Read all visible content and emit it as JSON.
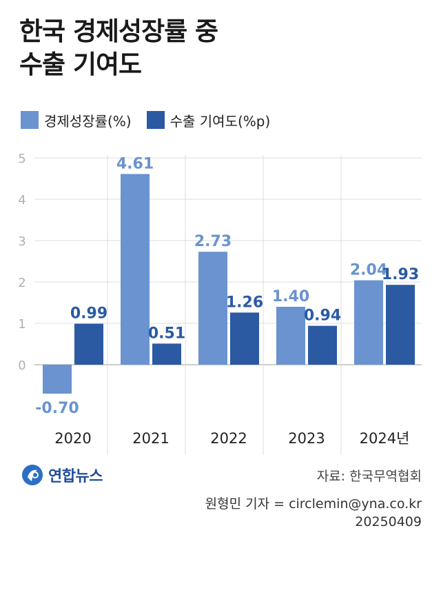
{
  "title_lines": [
    "한국 경제성장률 중",
    "수출 기여도"
  ],
  "colors": {
    "growth": "#6a93cf",
    "export": "#2b5aa3",
    "grid": "#dcdcdc",
    "axis_text": "#b0b0b0",
    "zero_line": "#9a9a9a"
  },
  "source": "자료: 한국무역협회",
  "credit": {
    "reporter": "원형민 기자 = circlemin@yna.co.kr",
    "date": "20250409"
  },
  "logo": {
    "text": "연합뉴스",
    "icon": "yonhap-logo-icon"
  },
  "chart_data": {
    "type": "bar",
    "categories": [
      "2020",
      "2021",
      "2022",
      "2023",
      "2024년"
    ],
    "series": [
      {
        "name": "경제성장률(%)",
        "values": [
          -0.7,
          4.61,
          2.73,
          1.4,
          2.04
        ],
        "labels": [
          "-0.70",
          "4.61",
          "2.73",
          "1.40",
          "2.04"
        ]
      },
      {
        "name": "수출 기여도(%p)",
        "values": [
          0.99,
          0.51,
          1.26,
          0.94,
          1.93
        ],
        "labels": [
          "0.99",
          "0.51",
          "1.26",
          "0.94",
          "1.93"
        ]
      }
    ],
    "y_ticks": [
      "0",
      "1",
      "2",
      "3",
      "4",
      "5"
    ],
    "ylim": [
      -1.6,
      5
    ],
    "grid": true,
    "legend_position": "top-left"
  }
}
